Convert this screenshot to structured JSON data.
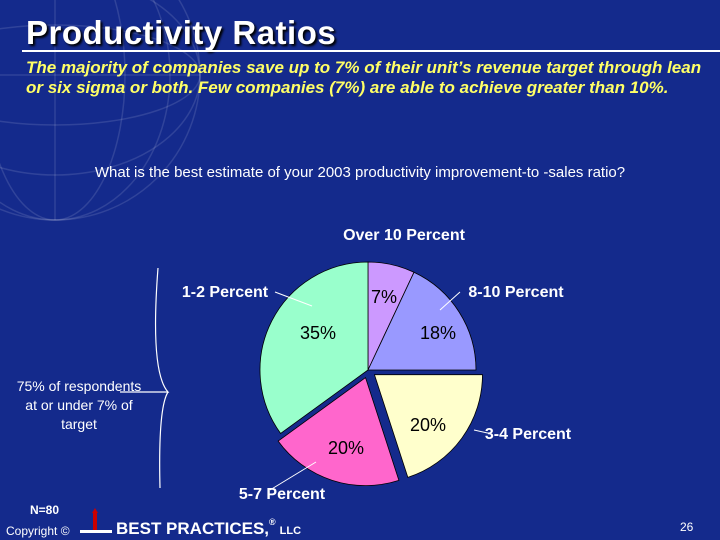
{
  "slide": {
    "title": "Productivity Ratios",
    "subtitle": "The majority of companies save up to 7% of their unit’s revenue target through lean or six sigma or both. Few companies (7%) are able to achieve greater than 10%.",
    "question": "What is the best estimate of your 2003 productivity improvement-to -sales ratio?",
    "note": "75% of respondents at or under 7% of target",
    "sample": "N=80",
    "copyright": "Copyright ©",
    "brand": "BEST PRACTICES,",
    "brand_reg": "®",
    "brand_llc": "LLC",
    "page": "26"
  },
  "colors": {
    "background": "#142a8c",
    "subtitle": "#ffff66",
    "slice_over_10": "#cc99ff",
    "slice_8_10": "#9999ff",
    "slice_3_4": "#ffffcc",
    "slice_5_7": "#ff66cc",
    "slice_1_2": "#99ffcc"
  },
  "chart_data": {
    "type": "pie",
    "title": "",
    "slices": [
      {
        "category": "Over 10 Percent",
        "value": 7,
        "label": "7%",
        "color": "#cc99ff"
      },
      {
        "category": "8-10 Percent",
        "value": 18,
        "label": "18%",
        "color": "#9999ff"
      },
      {
        "category": "3-4 Percent",
        "value": 20,
        "label": "20%",
        "color": "#ffffcc"
      },
      {
        "category": "5-7 Percent",
        "value": 20,
        "label": "20%",
        "color": "#ff66cc"
      },
      {
        "category": "1-2 Percent",
        "value": 35,
        "label": "35%",
        "color": "#99ffcc"
      }
    ]
  }
}
